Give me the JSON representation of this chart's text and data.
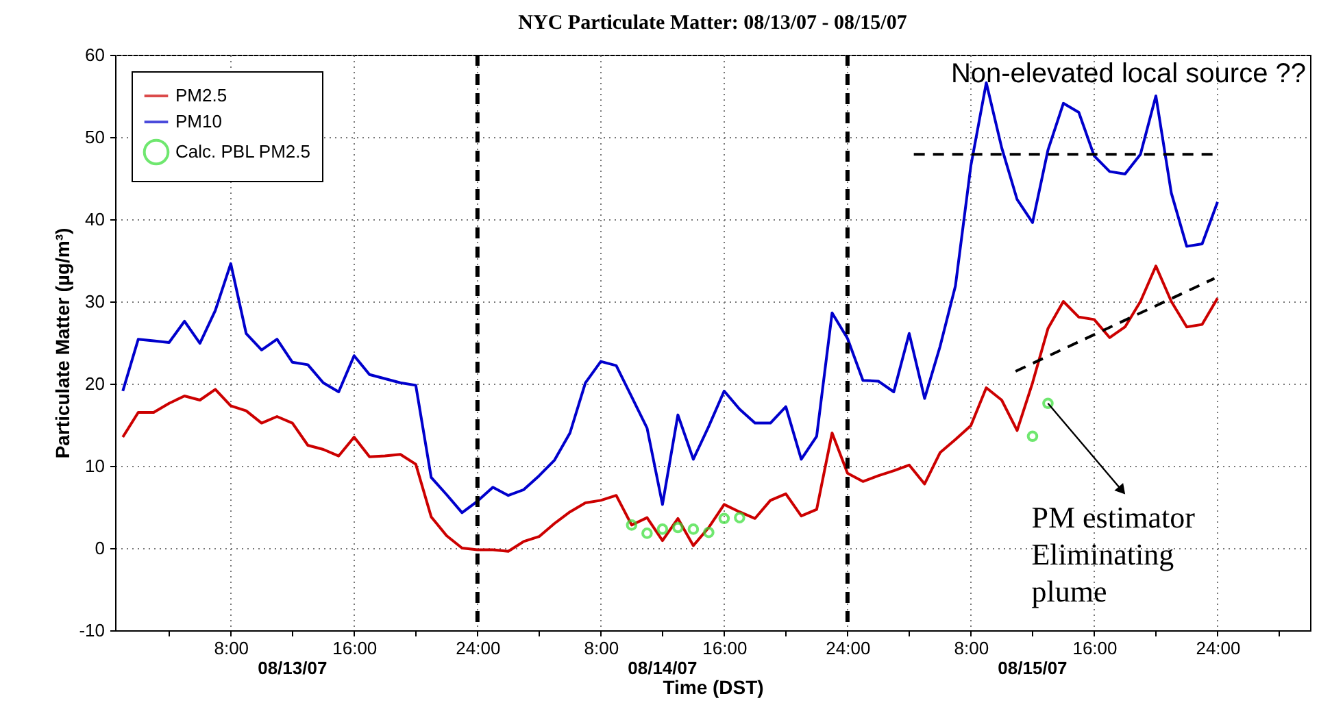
{
  "chart_data": {
    "type": "line",
    "title": "NYC Particulate Matter: 08/13/07 - 08/15/07",
    "xlabel": "Time (DST)",
    "ylabel": "Particulate Matter (µg/m³)",
    "x": [
      "--08-13T01:00",
      "--08-13T02:00",
      "--08-13T03:00",
      "--08-13T04:00",
      "--08-13T05:00",
      "--08-13T06:00",
      "--08-13T07:00",
      "--08-13T08:00",
      "--08-13T09:00",
      "--08-13T10:00",
      "--08-13T11:00",
      "--08-13T12:00",
      "--08-13T13:00",
      "--08-13T14:00",
      "--08-13T15:00",
      "--08-13T16:00",
      "--08-13T17:00",
      "--08-13T18:00",
      "--08-13T19:00",
      "--08-13T20:00",
      "--08-13T21:00",
      "--08-13T22:00",
      "--08-13T23:00",
      "--08-14T00:00",
      "--08-14T01:00",
      "--08-14T02:00",
      "--08-14T03:00",
      "--08-14T04:00",
      "--08-14T05:00",
      "--08-14T06:00",
      "--08-14T07:00",
      "--08-14T08:00",
      "--08-14T09:00",
      "--08-14T10:00",
      "--08-14T11:00",
      "--08-14T12:00",
      "--08-14T13:00",
      "--08-14T14:00",
      "--08-14T15:00",
      "--08-14T16:00",
      "--08-14T17:00",
      "--08-14T18:00",
      "--08-14T19:00",
      "--08-14T20:00",
      "--08-14T21:00",
      "--08-14T22:00",
      "--08-14T23:00",
      "--08-15T00:00",
      "--08-15T01:00",
      "--08-15T02:00",
      "--08-15T03:00",
      "--08-15T04:00",
      "--08-15T05:00",
      "--08-15T06:00",
      "--08-15T07:00",
      "--08-15T08:00",
      "--08-15T09:00",
      "--08-15T10:00",
      "--08-15T11:00",
      "--08-15T12:00",
      "--08-15T13:00",
      "--08-15T14:00",
      "--08-15T15:00",
      "--08-15T16:00",
      "--08-15T17:00",
      "--08-15T18:00",
      "--08-15T19:00",
      "--08-15T20:00",
      "--08-15T21:00",
      "--08-15T22:00",
      "--08-15T23:00",
      "--08-16T00:00"
    ],
    "series": [
      {
        "name": "PM2.5",
        "color": "#cc0000",
        "values": [
          13.5,
          16.5,
          16.5,
          17.6,
          18.5,
          18.0,
          19.3,
          17.3,
          16.7,
          15.2,
          16.0,
          15.2,
          12.5,
          12.0,
          11.2,
          13.5,
          11.1,
          11.2,
          11.4,
          10.2,
          3.8,
          1.5,
          0.0,
          -0.2,
          -0.2,
          -0.4,
          0.8,
          1.4,
          3.0,
          4.4,
          5.5,
          5.8,
          6.4,
          2.8,
          3.7,
          0.9,
          3.6,
          0.3,
          2.5,
          5.3,
          4.4,
          3.6,
          5.8,
          6.6,
          3.9,
          4.7,
          14.0,
          9.1,
          8.1,
          8.8,
          9.4,
          10.1,
          7.8,
          11.6,
          13.2,
          14.9,
          19.5,
          18.0,
          14.3,
          20.1,
          26.7,
          30.0,
          28.1,
          27.8,
          25.6,
          26.9,
          30.0,
          34.3,
          30.0,
          26.9,
          27.2,
          30.4
        ]
      },
      {
        "name": "PM10",
        "color": "#0000cc",
        "values": [
          19.1,
          25.4,
          25.2,
          25.0,
          27.6,
          24.9,
          28.9,
          34.6,
          26.1,
          24.1,
          25.4,
          22.6,
          22.3,
          20.1,
          19.0,
          23.4,
          21.1,
          20.6,
          20.1,
          19.8,
          8.6,
          6.5,
          4.3,
          5.7,
          7.4,
          6.4,
          7.1,
          8.8,
          10.7,
          14.0,
          20.1,
          22.7,
          22.2,
          18.4,
          14.6,
          5.3,
          16.2,
          10.8,
          14.8,
          19.1,
          16.9,
          15.2,
          15.2,
          17.2,
          10.8,
          13.6,
          28.6,
          25.5,
          20.4,
          20.3,
          19.0,
          26.1,
          18.2,
          24.5,
          31.9,
          46.5,
          56.6,
          48.7,
          42.4,
          39.6,
          48.4,
          54.1,
          53.0,
          47.7,
          45.8,
          45.5,
          47.9,
          55.0,
          43.2,
          36.7,
          37.0,
          42.1
        ]
      },
      {
        "name": "Calc. PBL PM2.5",
        "type": "scatter",
        "marker": "circle",
        "color": "#33dd33",
        "x": [
          "--08-14T10:00",
          "--08-14T11:00",
          "--08-14T12:00",
          "--08-14T13:00",
          "--08-14T14:00",
          "--08-14T15:00",
          "--08-14T16:00",
          "--08-14T17:00",
          "--08-15T12:00",
          "--08-15T13:00"
        ],
        "values": [
          2.8,
          1.8,
          2.3,
          2.5,
          2.3,
          1.9,
          3.6,
          3.7,
          13.6,
          17.6
        ]
      },
      {
        "type": "line",
        "color": "#000000",
        "line_style": "dashed",
        "x": [
          "--08-15T04:18",
          "--08-15T23:48"
        ],
        "values": [
          47.9,
          47.9
        ]
      },
      {
        "type": "line",
        "color": "#000000",
        "line_style": "dashed",
        "x": [
          "--08-15T10:54",
          "--08-15T23:48"
        ],
        "values": [
          21.5,
          32.8
        ]
      }
    ],
    "xlim": [
      "--08-13T00:30",
      "--08-16T06:00"
    ],
    "xticks": [
      {
        "value": "--08-13T04:00",
        "label": null
      },
      {
        "value": "--08-13T08:00",
        "label": "8:00"
      },
      {
        "value": "--08-13T12:00",
        "label": null
      },
      {
        "value": "--08-13T16:00",
        "label": "16:00"
      },
      {
        "value": "--08-13T20:00",
        "label": null
      },
      {
        "value": "--08-14T00:00",
        "label": "24:00"
      },
      {
        "value": "--08-14T04:00",
        "label": null
      },
      {
        "value": "--08-14T08:00",
        "label": "8:00"
      },
      {
        "value": "--08-14T12:00",
        "label": null
      },
      {
        "value": "--08-14T16:00",
        "label": "16:00"
      },
      {
        "value": "--08-14T20:00",
        "label": null
      },
      {
        "value": "--08-15T00:00",
        "label": "24:00"
      },
      {
        "value": "--08-15T04:00",
        "label": null
      },
      {
        "value": "--08-15T08:00",
        "label": "8:00"
      },
      {
        "value": "--08-15T12:00",
        "label": null
      },
      {
        "value": "--08-15T16:00",
        "label": "16:00"
      },
      {
        "value": "--08-15T20:00",
        "label": null
      },
      {
        "value": "--08-16T00:00",
        "label": "24:00"
      },
      {
        "value": "--08-16T04:00",
        "label": null
      }
    ],
    "ylim": [
      -10,
      60
    ],
    "yticks": [
      -10,
      0,
      10,
      20,
      30,
      40,
      50,
      60
    ],
    "grid": true,
    "legend": "top left",
    "line_style": "solid",
    "ref_lines": [
      {
        "axis": "x",
        "value": "--08-14T00:00",
        "color": "#000000",
        "line_style": "dashed"
      },
      {
        "axis": "x",
        "value": "--08-15T00:00",
        "color": "#000000",
        "line_style": "dashed"
      }
    ],
    "annotations": [
      "Non-elevated local source ??",
      {
        "text": "PM estimator\nEliminating\nplume",
        "x": "--08-15T17:48",
        "y": 7
      },
      "08/13/07",
      "08/14/07",
      "08/15/07"
    ]
  }
}
